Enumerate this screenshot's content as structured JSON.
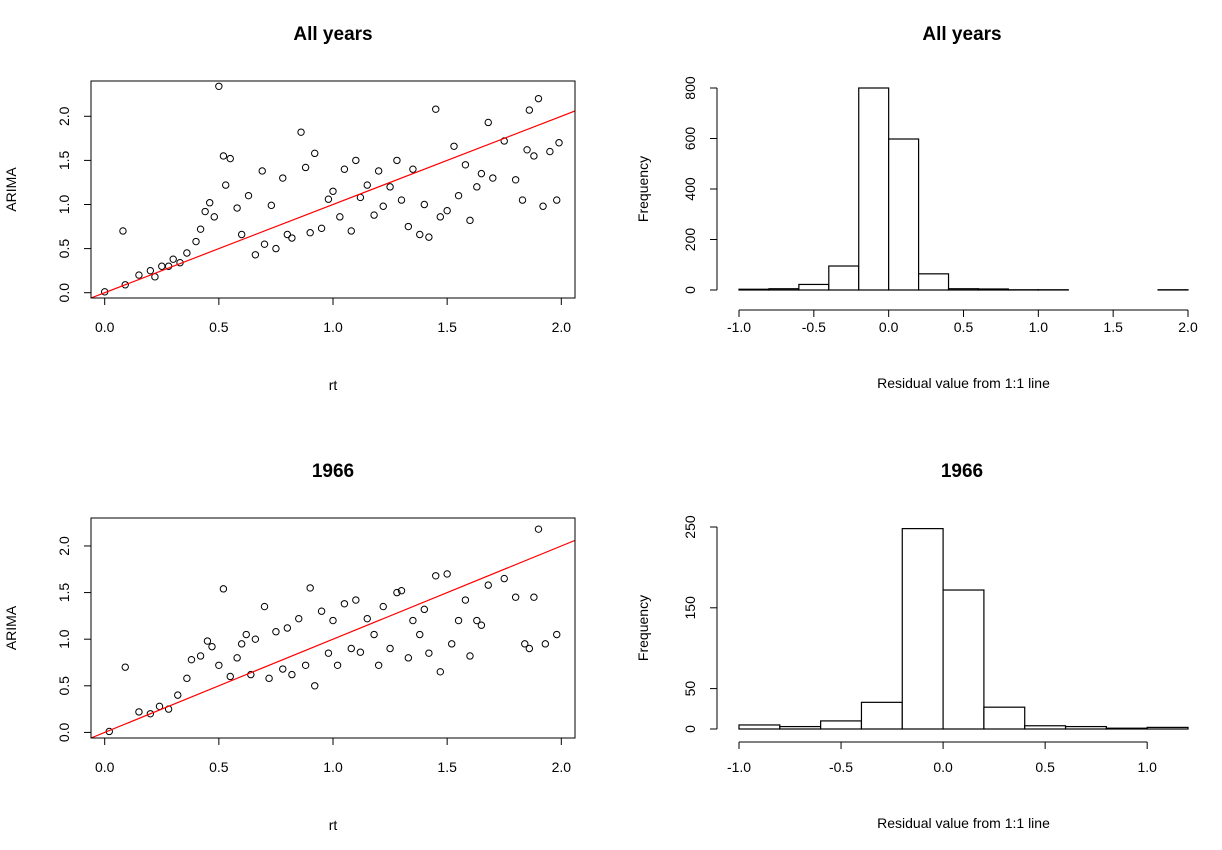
{
  "chart_data": [
    {
      "type": "scatter",
      "title": "All years",
      "xlabel": "rt",
      "ylabel": "ARIMA",
      "xlim": [
        -0.06,
        2.06
      ],
      "ylim": [
        -0.06,
        2.4
      ],
      "xticks": [
        "0.0",
        "0.5",
        "1.0",
        "1.5",
        "2.0"
      ],
      "yticks": [
        "0.0",
        "0.5",
        "1.0",
        "1.5",
        "2.0"
      ],
      "marker": "open-circle",
      "reference_line": {
        "slope": 1,
        "intercept": 0,
        "color": "#ff0000"
      },
      "grid": false,
      "points": [
        [
          0.0,
          0.01
        ],
        [
          0.08,
          0.7
        ],
        [
          0.09,
          0.09
        ],
        [
          0.15,
          0.2
        ],
        [
          0.2,
          0.25
        ],
        [
          0.22,
          0.18
        ],
        [
          0.25,
          0.3
        ],
        [
          0.28,
          0.3
        ],
        [
          0.3,
          0.38
        ],
        [
          0.33,
          0.34
        ],
        [
          0.36,
          0.45
        ],
        [
          0.4,
          0.58
        ],
        [
          0.42,
          0.72
        ],
        [
          0.44,
          0.92
        ],
        [
          0.46,
          1.02
        ],
        [
          0.48,
          0.86
        ],
        [
          0.5,
          2.34
        ],
        [
          0.52,
          1.55
        ],
        [
          0.55,
          1.52
        ],
        [
          0.53,
          1.22
        ],
        [
          0.58,
          0.96
        ],
        [
          0.6,
          0.66
        ],
        [
          0.63,
          1.1
        ],
        [
          0.66,
          0.43
        ],
        [
          0.69,
          1.38
        ],
        [
          0.7,
          0.55
        ],
        [
          0.73,
          0.99
        ],
        [
          0.75,
          0.5
        ],
        [
          0.78,
          1.3
        ],
        [
          0.8,
          0.66
        ],
        [
          0.82,
          0.62
        ],
        [
          0.86,
          1.82
        ],
        [
          0.88,
          1.42
        ],
        [
          0.9,
          0.68
        ],
        [
          0.92,
          1.58
        ],
        [
          0.95,
          0.73
        ],
        [
          0.98,
          1.06
        ],
        [
          1.0,
          1.15
        ],
        [
          1.03,
          0.86
        ],
        [
          1.05,
          1.4
        ],
        [
          1.08,
          0.7
        ],
        [
          1.1,
          1.5
        ],
        [
          1.12,
          1.08
        ],
        [
          1.15,
          1.22
        ],
        [
          1.18,
          0.88
        ],
        [
          1.2,
          1.38
        ],
        [
          1.22,
          0.98
        ],
        [
          1.25,
          1.2
        ],
        [
          1.28,
          1.5
        ],
        [
          1.3,
          1.05
        ],
        [
          1.33,
          0.75
        ],
        [
          1.35,
          1.4
        ],
        [
          1.38,
          0.66
        ],
        [
          1.4,
          1.0
        ],
        [
          1.42,
          0.63
        ],
        [
          1.45,
          2.08
        ],
        [
          1.47,
          0.86
        ],
        [
          1.5,
          0.93
        ],
        [
          1.53,
          1.66
        ],
        [
          1.55,
          1.1
        ],
        [
          1.58,
          1.45
        ],
        [
          1.6,
          0.82
        ],
        [
          1.63,
          1.2
        ],
        [
          1.65,
          1.35
        ],
        [
          1.68,
          1.93
        ],
        [
          1.7,
          1.3
        ],
        [
          1.75,
          1.72
        ],
        [
          1.8,
          1.28
        ],
        [
          1.83,
          1.05
        ],
        [
          1.85,
          1.62
        ],
        [
          1.86,
          2.07
        ],
        [
          1.88,
          1.55
        ],
        [
          1.9,
          2.2
        ],
        [
          1.92,
          0.98
        ],
        [
          1.95,
          1.6
        ],
        [
          1.98,
          1.05
        ],
        [
          1.99,
          1.7
        ]
      ]
    },
    {
      "type": "histogram",
      "title": "All years",
      "xlabel": "Residual value from 1:1 line",
      "ylabel": "Frequency",
      "xlim": [
        -1.0,
        2.0
      ],
      "ylim": [
        0,
        800
      ],
      "xticks": [
        "-1.0",
        "-0.5",
        "0.0",
        "0.5",
        "1.0",
        "1.5",
        "2.0"
      ],
      "yticks": [
        "0",
        "200",
        "400",
        "600",
        "800"
      ],
      "bin_edges": [
        -1.0,
        -0.8,
        -0.6,
        -0.4,
        -0.2,
        0.0,
        0.2,
        0.4,
        0.6,
        0.8,
        1.0,
        1.2,
        1.4,
        1.6,
        1.8,
        2.0
      ],
      "counts": [
        3,
        5,
        22,
        95,
        800,
        598,
        64,
        5,
        4,
        1,
        1,
        0,
        0,
        0,
        1
      ]
    },
    {
      "type": "scatter",
      "title": "1966",
      "xlabel": "rt",
      "ylabel": "ARIMA",
      "xlim": [
        -0.06,
        2.06
      ],
      "ylim": [
        -0.06,
        2.3
      ],
      "xticks": [
        "0.0",
        "0.5",
        "1.0",
        "1.5",
        "2.0"
      ],
      "yticks": [
        "0.0",
        "0.5",
        "1.0",
        "1.5",
        "2.0"
      ],
      "marker": "open-circle",
      "reference_line": {
        "slope": 1,
        "intercept": 0,
        "color": "#ff0000"
      },
      "grid": false,
      "points": [
        [
          0.02,
          0.01
        ],
        [
          0.09,
          0.7
        ],
        [
          0.15,
          0.22
        ],
        [
          0.2,
          0.2
        ],
        [
          0.24,
          0.28
        ],
        [
          0.28,
          0.25
        ],
        [
          0.32,
          0.4
        ],
        [
          0.36,
          0.58
        ],
        [
          0.38,
          0.78
        ],
        [
          0.42,
          0.82
        ],
        [
          0.45,
          0.98
        ],
        [
          0.47,
          0.92
        ],
        [
          0.5,
          0.72
        ],
        [
          0.52,
          1.54
        ],
        [
          0.55,
          0.6
        ],
        [
          0.58,
          0.8
        ],
        [
          0.6,
          0.95
        ],
        [
          0.62,
          1.05
        ],
        [
          0.64,
          0.62
        ],
        [
          0.66,
          1.0
        ],
        [
          0.7,
          1.35
        ],
        [
          0.72,
          0.58
        ],
        [
          0.75,
          1.08
        ],
        [
          0.78,
          0.68
        ],
        [
          0.8,
          1.12
        ],
        [
          0.82,
          0.62
        ],
        [
          0.85,
          1.22
        ],
        [
          0.88,
          0.72
        ],
        [
          0.9,
          1.55
        ],
        [
          0.92,
          0.5
        ],
        [
          0.95,
          1.3
        ],
        [
          0.98,
          0.85
        ],
        [
          1.0,
          1.2
        ],
        [
          1.02,
          0.72
        ],
        [
          1.05,
          1.38
        ],
        [
          1.08,
          0.9
        ],
        [
          1.1,
          1.42
        ],
        [
          1.12,
          0.86
        ],
        [
          1.15,
          1.22
        ],
        [
          1.18,
          1.05
        ],
        [
          1.2,
          0.72
        ],
        [
          1.22,
          1.35
        ],
        [
          1.25,
          0.9
        ],
        [
          1.28,
          1.5
        ],
        [
          1.3,
          1.52
        ],
        [
          1.33,
          0.8
        ],
        [
          1.35,
          1.2
        ],
        [
          1.38,
          1.05
        ],
        [
          1.4,
          1.32
        ],
        [
          1.42,
          0.85
        ],
        [
          1.45,
          1.68
        ],
        [
          1.47,
          0.65
        ],
        [
          1.5,
          1.7
        ],
        [
          1.52,
          0.95
        ],
        [
          1.55,
          1.2
        ],
        [
          1.58,
          1.42
        ],
        [
          1.6,
          0.82
        ],
        [
          1.63,
          1.2
        ],
        [
          1.65,
          1.15
        ],
        [
          1.68,
          1.58
        ],
        [
          1.75,
          1.65
        ],
        [
          1.8,
          1.45
        ],
        [
          1.84,
          0.95
        ],
        [
          1.86,
          0.9
        ],
        [
          1.88,
          1.45
        ],
        [
          1.9,
          2.18
        ],
        [
          1.93,
          0.95
        ],
        [
          1.98,
          1.05
        ]
      ]
    },
    {
      "type": "histogram",
      "title": "1966",
      "xlabel": "Residual value from 1:1 line",
      "ylabel": "Frequency",
      "xlim": [
        -1.0,
        1.2
      ],
      "ylim": [
        0,
        250
      ],
      "xticks": [
        "-1.0",
        "-0.5",
        "0.0",
        "0.5",
        "1.0"
      ],
      "yticks": [
        "0",
        "50",
        "150",
        "250"
      ],
      "bin_edges": [
        -1.0,
        -0.8,
        -0.6,
        -0.4,
        -0.2,
        0.0,
        0.2,
        0.4,
        0.6,
        0.8,
        1.0,
        1.2
      ],
      "counts": [
        5,
        3,
        10,
        33,
        248,
        172,
        27,
        4,
        3,
        1,
        2
      ]
    }
  ]
}
